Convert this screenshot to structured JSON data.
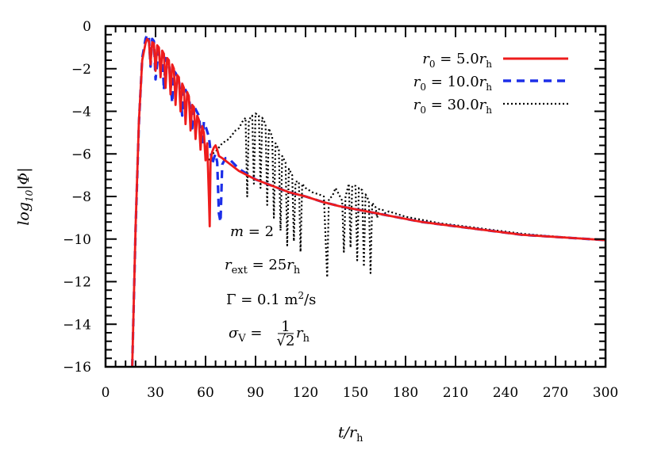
{
  "chart_data": {
    "type": "line",
    "xlabel": "t/r_h",
    "ylabel": "log10|Φ|",
    "xlim": [
      0,
      300
    ],
    "ylim": [
      -16,
      0
    ],
    "xticks": [
      0,
      30,
      60,
      90,
      120,
      150,
      180,
      210,
      240,
      270,
      300
    ],
    "yticks": [
      0,
      -2,
      -4,
      -6,
      -8,
      -10,
      -12,
      -14,
      -16
    ],
    "xtick_labels": [
      "0",
      "30",
      "60",
      "90",
      "120",
      "150",
      "180",
      "210",
      "240",
      "270",
      "300"
    ],
    "ytick_labels": [
      "0",
      "−2",
      "−4",
      "−6",
      "−8",
      "−10",
      "−12",
      "−14",
      "−16"
    ],
    "grid": false,
    "legend_position": "top-right",
    "annotations": [
      "m = 2",
      "r_ext = 25r_h",
      "Γ = 0.1 m²/s",
      "σ_V = (1/√2) r_h"
    ],
    "series": [
      {
        "name": "r0 = 5.0rh",
        "color": "#ee1c1c",
        "dash": "solid",
        "x": [
          16,
          18,
          20,
          22,
          24,
          25,
          26,
          27,
          28,
          29,
          30,
          31,
          32,
          33,
          34,
          35,
          36,
          37,
          38,
          39,
          40,
          41,
          42,
          43,
          44,
          45,
          46,
          47,
          48,
          49,
          50,
          51,
          52,
          53,
          54,
          55,
          56,
          57,
          58,
          59,
          60,
          61,
          62,
          62.5,
          63,
          64,
          65,
          66,
          67,
          68,
          70,
          75,
          80,
          90,
          100,
          110,
          120,
          130,
          140,
          150,
          160,
          170,
          180,
          190,
          200,
          210,
          220,
          230,
          240,
          250,
          260,
          270,
          280,
          290,
          300
        ],
        "y": [
          -16,
          -9.5,
          -4.5,
          -1.6,
          -0.8,
          -0.6,
          -0.7,
          -1.8,
          -0.75,
          -0.8,
          -2.1,
          -0.9,
          -1.0,
          -2.4,
          -1.15,
          -1.3,
          -2.9,
          -1.5,
          -1.6,
          -3.2,
          -1.8,
          -2.0,
          -3.7,
          -2.3,
          -2.4,
          -4.0,
          -2.7,
          -2.9,
          -4.6,
          -3.1,
          -3.3,
          -4.9,
          -3.7,
          -3.8,
          -5.3,
          -4.2,
          -4.4,
          -5.8,
          -4.7,
          -5.0,
          -6.3,
          -5.5,
          -8.0,
          -9.4,
          -6.3,
          -5.9,
          -5.7,
          -5.6,
          -5.8,
          -6.1,
          -6.2,
          -6.5,
          -6.8,
          -7.2,
          -7.5,
          -7.8,
          -8.0,
          -8.25,
          -8.45,
          -8.6,
          -8.75,
          -8.9,
          -9.05,
          -9.2,
          -9.3,
          -9.4,
          -9.5,
          -9.6,
          -9.7,
          -9.8,
          -9.85,
          -9.9,
          -9.95,
          -10.0,
          -10.05
        ]
      },
      {
        "name": "r0 = 10.0rh",
        "color": "#1c2ee8",
        "dash": "dashed",
        "x": [
          16,
          18,
          20,
          22,
          24,
          25,
          26,
          27,
          28,
          29,
          30,
          32,
          34,
          35,
          36,
          38,
          40,
          41,
          42,
          44,
          46,
          47,
          48,
          50,
          52,
          53,
          54,
          56,
          58,
          59,
          60,
          62,
          64,
          65,
          66,
          67,
          68,
          69,
          70,
          72,
          75,
          80,
          90,
          100,
          110,
          120,
          130,
          140,
          150,
          160,
          170,
          180,
          190,
          200,
          210,
          220,
          230,
          240,
          250,
          260,
          270,
          280,
          290,
          300
        ],
        "y": [
          -16,
          -9.6,
          -4.6,
          -1.5,
          -0.6,
          -0.4,
          -0.5,
          -1.9,
          -0.6,
          -0.7,
          -2.5,
          -1.0,
          -1.1,
          -3.0,
          -1.5,
          -1.7,
          -3.6,
          -2.1,
          -2.2,
          -2.5,
          -4.2,
          -2.8,
          -3.0,
          -3.3,
          -4.8,
          -3.7,
          -3.9,
          -4.2,
          -5.6,
          -4.5,
          -4.7,
          -5.2,
          -6.5,
          -6.2,
          -6.0,
          -6.4,
          -8.8,
          -9.2,
          -6.5,
          -6.2,
          -6.3,
          -6.7,
          -7.2,
          -7.5,
          -7.8,
          -8.0,
          -8.25,
          -8.45,
          -8.6,
          -8.75,
          -8.9,
          -9.05,
          -9.2,
          -9.3,
          -9.4,
          -9.5,
          -9.6,
          -9.7,
          -9.8,
          -9.85,
          -9.9,
          -9.95,
          -10.0,
          -10.05
        ]
      },
      {
        "name": "r0 = 30.0rh",
        "color": "#000000",
        "dash": "dotted",
        "x": [
          62,
          64,
          66,
          68,
          70,
          72,
          74,
          76,
          78,
          80,
          82,
          84,
          85,
          86,
          88,
          89,
          90,
          92,
          93,
          94,
          96,
          97,
          98,
          100,
          101,
          102,
          104,
          105,
          106,
          108,
          109,
          110,
          112,
          113,
          114,
          116,
          117,
          118,
          120,
          124,
          128,
          131,
          133,
          134,
          136,
          138,
          140,
          142,
          143,
          144,
          146,
          147,
          148,
          150,
          151,
          152,
          154,
          155,
          156,
          158,
          159,
          160,
          162,
          163,
          164,
          166,
          168,
          170,
          172,
          176,
          180,
          190,
          200,
          210,
          220,
          230,
          240,
          250,
          260,
          270,
          280,
          290,
          300
        ],
        "y": [
          -6.3,
          -6.0,
          -5.9,
          -5.7,
          -5.5,
          -5.4,
          -5.3,
          -5.1,
          -4.9,
          -4.8,
          -4.5,
          -4.3,
          -8.0,
          -4.4,
          -4.2,
          -7.4,
          -4.1,
          -4.2,
          -7.6,
          -4.3,
          -4.6,
          -8.4,
          -4.8,
          -5.2,
          -9.0,
          -5.5,
          -5.8,
          -9.6,
          -6.1,
          -6.4,
          -10.3,
          -6.7,
          -7.0,
          -10.1,
          -7.3,
          -7.3,
          -10.6,
          -7.4,
          -7.6,
          -7.8,
          -7.9,
          -8.0,
          -11.8,
          -8.1,
          -8.0,
          -7.6,
          -7.9,
          -8.2,
          -10.6,
          -8.0,
          -7.4,
          -10.4,
          -7.5,
          -7.5,
          -11.0,
          -7.6,
          -7.7,
          -11.3,
          -7.9,
          -8.2,
          -11.6,
          -8.3,
          -8.5,
          -9.0,
          -8.6,
          -8.6,
          -8.8,
          -8.7,
          -8.75,
          -8.85,
          -8.95,
          -9.1,
          -9.25,
          -9.35,
          -9.45,
          -9.55,
          -9.65,
          -9.75,
          -9.82,
          -9.88,
          -9.94,
          -10.0,
          -10.05
        ]
      }
    ]
  }
}
